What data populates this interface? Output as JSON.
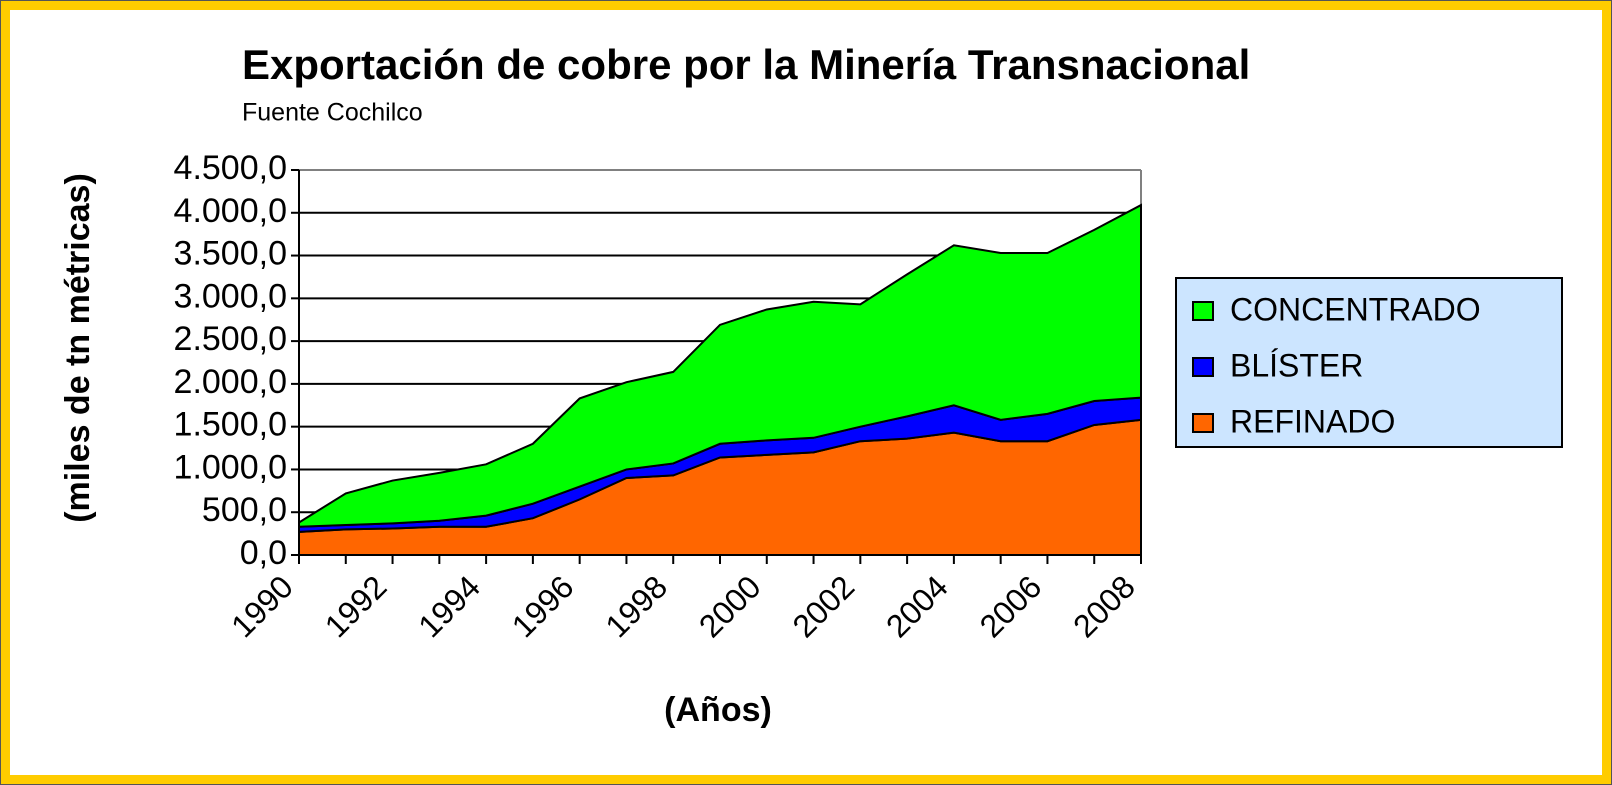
{
  "chart_data": {
    "type": "stacked_area",
    "title": "Exportación de cobre por la Minería Transnacional",
    "subtitle": "Fuente Cochilco",
    "y_label": "(miles de tn métricas)",
    "x_label": "(Años)",
    "categories": [
      "1990",
      null,
      "1992",
      null,
      "1994",
      null,
      "1996",
      null,
      "1998",
      null,
      "2000",
      null,
      "2002",
      null,
      "2004",
      null,
      "2006",
      null,
      "2008"
    ],
    "series": [
      {
        "name": "REFINADO",
        "color": "#FF6600",
        "values": [
          270,
          300,
          310,
          330,
          330,
          430,
          650,
          900,
          930,
          1140,
          1170,
          1200,
          1330,
          1360,
          1430,
          1330,
          1330,
          1520,
          1580
        ]
      },
      {
        "name": "BLÍSTER",
        "color": "#0000FF",
        "values": [
          60,
          50,
          60,
          70,
          130,
          170,
          150,
          100,
          140,
          160,
          170,
          170,
          170,
          260,
          320,
          250,
          320,
          280,
          260
        ]
      },
      {
        "name": "CONCENTRADO",
        "color": "#00FF00",
        "values": [
          50,
          370,
          500,
          560,
          600,
          700,
          1030,
          1020,
          1070,
          1390,
          1530,
          1590,
          1430,
          1660,
          1870,
          1950,
          1880,
          2000,
          2250
        ]
      }
    ],
    "ylim": [
      0,
      4500
    ],
    "yticks": [
      {
        "value": 0,
        "label": "0,0"
      },
      {
        "value": 500,
        "label": "500,0"
      },
      {
        "value": 1000,
        "label": "1.000,0"
      },
      {
        "value": 1500,
        "label": "1.500,0"
      },
      {
        "value": 2000,
        "label": "2.000,0"
      },
      {
        "value": 2500,
        "label": "2.500,0"
      },
      {
        "value": 3000,
        "label": "3.000,0"
      },
      {
        "value": 3500,
        "label": "3.500,0"
      },
      {
        "value": 4000,
        "label": "4.000,0"
      },
      {
        "value": 4500,
        "label": "4.500,0"
      }
    ],
    "grid": true,
    "legend": "right"
  }
}
